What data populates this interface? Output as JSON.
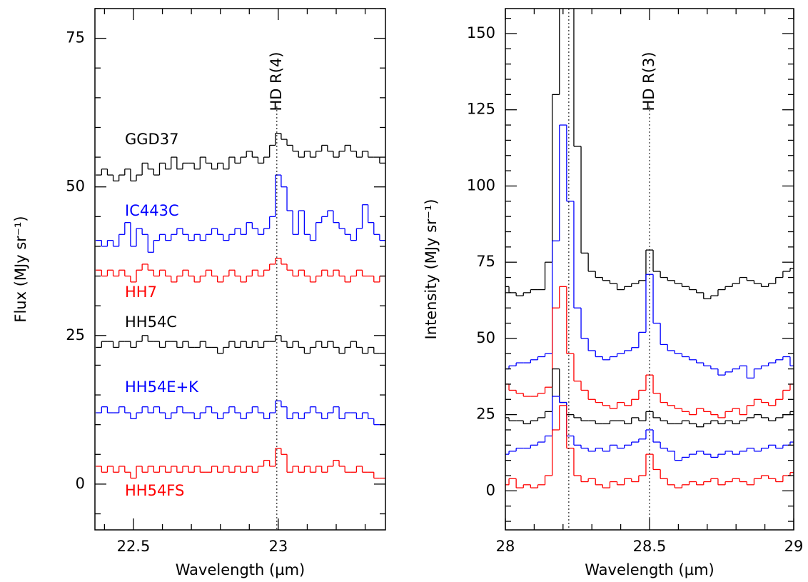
{
  "chart_data": [
    {
      "type": "step",
      "xlabel": "Wavelength (µm)",
      "ylabel": "Flux (MJy sr⁻¹)",
      "xlim": [
        22.367,
        23.37
      ],
      "ylim": [
        -7.7,
        80
      ],
      "xticks": [
        22.5,
        23
      ],
      "yticks": [
        0,
        25,
        50,
        75
      ],
      "xminorticks": [
        22.4,
        22.6,
        22.7,
        22.8,
        22.9,
        23.1,
        23.2,
        23.3
      ],
      "yminorticks": [
        -5,
        5,
        10,
        15,
        20,
        30,
        35,
        40,
        45,
        55,
        60,
        65,
        70,
        80
      ],
      "annotations": [
        {
          "text": "HD R(4)",
          "x": 22.995
        }
      ],
      "x": [
        22.38,
        22.4,
        22.42,
        22.44,
        22.46,
        22.48,
        22.5,
        22.52,
        22.54,
        22.56,
        22.58,
        22.6,
        22.62,
        22.64,
        22.66,
        22.68,
        22.7,
        22.72,
        22.74,
        22.76,
        22.78,
        22.8,
        22.82,
        22.84,
        22.86,
        22.88,
        22.9,
        22.92,
        22.94,
        22.96,
        22.98,
        23.0,
        23.02,
        23.04,
        23.06,
        23.08,
        23.1,
        23.12,
        23.14,
        23.16,
        23.18,
        23.2,
        23.22,
        23.24,
        23.26,
        23.28,
        23.3,
        23.32,
        23.34,
        23.36
      ],
      "series": [
        {
          "name": "GGD37",
          "color": "#000000",
          "values": [
            52,
            53,
            52,
            51,
            52,
            53,
            51,
            52,
            54,
            53,
            52,
            54,
            53,
            55,
            53,
            54,
            54,
            53,
            55,
            54,
            53,
            54,
            53,
            55,
            54,
            55,
            56,
            55,
            54,
            55,
            57,
            59,
            58,
            57,
            56,
            55,
            56,
            55,
            56,
            57,
            56,
            55,
            56,
            57,
            56,
            55,
            56,
            55,
            55,
            54
          ]
        },
        {
          "name": "IC443C",
          "color": "#0000ff",
          "values": [
            41,
            40,
            41,
            40,
            42,
            44,
            40,
            43,
            42,
            39,
            41,
            42,
            41,
            42,
            43,
            42,
            41,
            42,
            41,
            42,
            43,
            42,
            41,
            42,
            43,
            42,
            44,
            43,
            42,
            43,
            45,
            52,
            50,
            46,
            42,
            46,
            42,
            41,
            44,
            45,
            46,
            44,
            43,
            42,
            41,
            43,
            47,
            44,
            42,
            41
          ]
        },
        {
          "name": "HH7",
          "color": "#ff0000",
          "values": [
            36,
            35,
            36,
            35,
            36,
            35,
            34,
            36,
            37,
            36,
            35,
            36,
            35,
            34,
            35,
            36,
            35,
            34,
            35,
            36,
            35,
            34,
            35,
            36,
            35,
            34,
            35,
            36,
            35,
            36,
            37,
            38,
            37,
            36,
            35,
            36,
            35,
            34,
            35,
            36,
            35,
            36,
            35,
            34,
            35,
            36,
            35,
            35,
            34,
            35
          ]
        },
        {
          "name": "HH54C",
          "color": "#000000",
          "values": [
            23,
            24,
            24,
            23,
            24,
            24,
            23,
            24,
            25,
            24,
            24,
            23,
            24,
            24,
            23,
            24,
            23,
            23,
            24,
            23,
            23,
            22,
            23,
            24,
            23,
            24,
            23,
            24,
            23,
            24,
            24,
            25,
            24,
            23,
            24,
            23,
            22,
            23,
            24,
            23,
            24,
            23,
            22,
            23,
            24,
            23,
            22,
            23,
            22,
            22
          ]
        },
        {
          "name": "HH54E+K",
          "color": "#0000ff",
          "values": [
            12,
            13,
            12,
            12,
            13,
            12,
            11,
            12,
            13,
            12,
            13,
            12,
            11,
            12,
            13,
            12,
            12,
            11,
            12,
            13,
            12,
            11,
            12,
            13,
            12,
            11,
            12,
            13,
            12,
            11,
            12,
            14,
            13,
            11,
            12,
            11,
            12,
            13,
            12,
            11,
            12,
            13,
            11,
            12,
            12,
            11,
            12,
            11,
            10,
            10
          ]
        },
        {
          "name": "HH54FS",
          "color": "#ff0000",
          "values": [
            3,
            2,
            3,
            2,
            3,
            2,
            1,
            3,
            2,
            3,
            2,
            3,
            2,
            3,
            2,
            3,
            2,
            3,
            2,
            2,
            3,
            2,
            3,
            2,
            3,
            2,
            3,
            2,
            3,
            4,
            3,
            6,
            5,
            2,
            3,
            2,
            3,
            2,
            3,
            2,
            3,
            4,
            3,
            2,
            2,
            3,
            2,
            2,
            1,
            1
          ]
        }
      ]
    },
    {
      "type": "step",
      "xlabel": "Wavelength (µm)",
      "ylabel": "Intensity (MJy sr⁻¹)",
      "xlim": [
        28,
        29
      ],
      "ylim": [
        -12.8,
        158.2
      ],
      "xticks": [
        28,
        28.5,
        29
      ],
      "yticks": [
        0,
        25,
        50,
        75,
        100,
        125,
        150
      ],
      "xminorticks": [
        28.1,
        28.2,
        28.3,
        28.4,
        28.6,
        28.7,
        28.8,
        28.9
      ],
      "yminorticks": [
        -10,
        -5,
        5,
        10,
        15,
        20,
        30,
        35,
        40,
        45,
        55,
        60,
        65,
        70,
        80,
        85,
        90,
        95,
        105,
        110,
        115,
        120,
        130,
        135,
        140,
        145,
        155
      ],
      "annotations": [
        {
          "x": 28.22
        },
        {
          "text": "HD R(3)",
          "x": 28.5
        }
      ],
      "x": [
        28.0,
        28.025,
        28.05,
        28.075,
        28.1,
        28.125,
        28.15,
        28.175,
        28.2,
        28.225,
        28.25,
        28.275,
        28.3,
        28.325,
        28.35,
        28.375,
        28.4,
        28.425,
        28.45,
        28.475,
        28.5,
        28.525,
        28.55,
        28.575,
        28.6,
        28.625,
        28.65,
        28.675,
        28.7,
        28.725,
        28.75,
        28.775,
        28.8,
        28.825,
        28.85,
        28.875,
        28.9,
        28.925,
        28.95,
        28.975,
        29.0
      ],
      "series": [
        {
          "color": "#000000",
          "values": [
            67,
            65,
            64,
            65,
            66,
            66,
            75,
            130,
            200,
            200,
            113,
            78,
            72,
            70,
            69,
            68,
            66,
            67,
            68,
            69,
            79,
            72,
            70,
            69,
            68,
            67,
            66,
            65,
            63,
            64,
            66,
            67,
            68,
            70,
            69,
            68,
            67,
            68,
            70,
            72,
            73
          ]
        },
        {
          "color": "#0000ff",
          "values": [
            40,
            41,
            42,
            42,
            43,
            44,
            45,
            82,
            120,
            95,
            60,
            50,
            46,
            44,
            43,
            44,
            45,
            46,
            47,
            52,
            71,
            55,
            48,
            46,
            45,
            44,
            43,
            42,
            41,
            40,
            38,
            39,
            40,
            41,
            37,
            40,
            41,
            42,
            43,
            44,
            41
          ]
        },
        {
          "color": "#ff0000",
          "values": [
            35,
            33,
            32,
            31,
            31,
            32,
            34,
            60,
            67,
            45,
            36,
            33,
            30,
            29,
            28,
            27,
            29,
            28,
            30,
            33,
            38,
            32,
            29,
            28,
            27,
            26,
            25,
            27,
            26,
            25,
            24,
            26,
            27,
            25,
            28,
            30,
            29,
            28,
            30,
            33,
            35
          ]
        },
        {
          "color": "#000000",
          "values": [
            24,
            23,
            23,
            22,
            23,
            24,
            26,
            40,
            29,
            25,
            24,
            23,
            23,
            22,
            22,
            23,
            23,
            22,
            24,
            23,
            26,
            24,
            23,
            22,
            22,
            23,
            22,
            21,
            22,
            23,
            22,
            23,
            22,
            23,
            24,
            25,
            24,
            23,
            24,
            25,
            26
          ]
        },
        {
          "color": "#0000ff",
          "values": [
            12,
            13,
            14,
            14,
            15,
            16,
            18,
            31,
            29,
            18,
            15,
            14,
            13,
            14,
            13,
            15,
            14,
            15,
            16,
            17,
            20,
            16,
            14,
            13,
            10,
            11,
            12,
            13,
            12,
            11,
            12,
            13,
            12,
            13,
            14,
            13,
            14,
            15,
            14,
            15,
            16
          ]
        },
        {
          "color": "#ff0000",
          "values": [
            2,
            4,
            1,
            2,
            1,
            2,
            5,
            20,
            28,
            14,
            5,
            3,
            4,
            2,
            1,
            3,
            2,
            4,
            3,
            5,
            12,
            7,
            4,
            2,
            1,
            2,
            3,
            2,
            3,
            4,
            2,
            3,
            4,
            3,
            2,
            4,
            5,
            4,
            3,
            5,
            6
          ]
        }
      ]
    }
  ]
}
